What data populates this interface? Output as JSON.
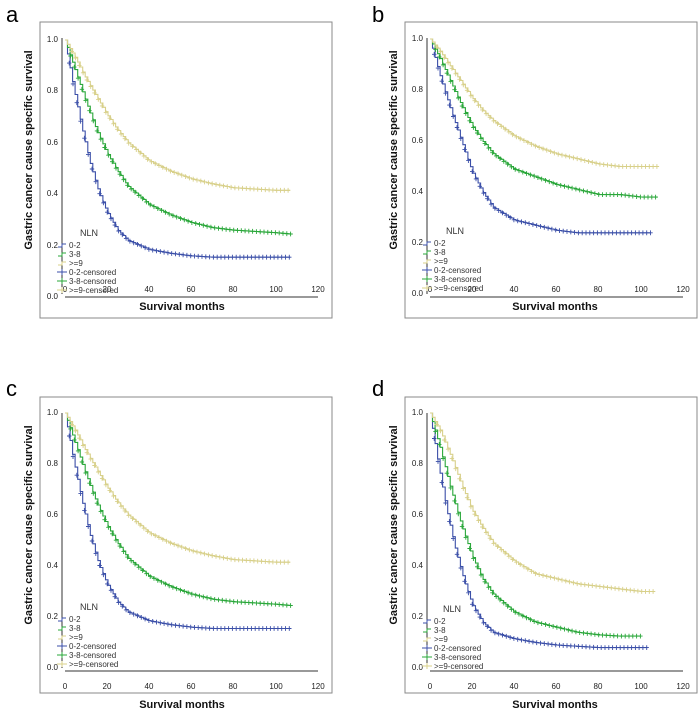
{
  "colors": {
    "group_low": "#3b4fa8",
    "group_mid": "#2aa73a",
    "group_high": "#d8d08a",
    "axis": "#333333",
    "frame": "#8a8a8a"
  },
  "chart_data": [
    {
      "panel_label": "a",
      "type": "line",
      "ylabel": "Gastric cancer cause specific survival",
      "xlabel": "Survival months",
      "xlim": [
        0,
        120
      ],
      "ylim": [
        0,
        1.0
      ],
      "x_ticks": [
        0,
        20,
        40,
        60,
        80,
        100,
        120
      ],
      "y_ticks": [
        "0.0",
        "0.2",
        "0.4",
        "0.6",
        "0.8",
        "1.0"
      ],
      "legend_title": "NLN",
      "legend_labels": [
        "0-2",
        "3-8",
        ">=9",
        "0-2-censored",
        "3-8-censored",
        ">=9-censored"
      ],
      "series": [
        {
          "name": "0-2",
          "color_key": "group_low",
          "x": [
            0,
            4,
            8,
            12,
            16,
            20,
            25,
            30,
            40,
            50,
            60,
            70,
            80,
            90,
            100,
            107
          ],
          "values": [
            1.0,
            0.82,
            0.66,
            0.52,
            0.41,
            0.33,
            0.26,
            0.22,
            0.185,
            0.17,
            0.16,
            0.155,
            0.155,
            0.155,
            0.155,
            0.155
          ]
        },
        {
          "name": "3-8",
          "color_key": "group_mid",
          "x": [
            0,
            5,
            10,
            15,
            20,
            25,
            30,
            40,
            50,
            60,
            70,
            80,
            90,
            100,
            107
          ],
          "values": [
            1.0,
            0.88,
            0.76,
            0.65,
            0.56,
            0.49,
            0.43,
            0.36,
            0.32,
            0.29,
            0.27,
            0.26,
            0.255,
            0.25,
            0.245
          ]
        },
        {
          "name": ">=9",
          "color_key": "group_high",
          "x": [
            0,
            5,
            10,
            15,
            20,
            25,
            30,
            40,
            50,
            60,
            70,
            80,
            90,
            100,
            107
          ],
          "values": [
            1.0,
            0.93,
            0.85,
            0.78,
            0.71,
            0.65,
            0.6,
            0.53,
            0.49,
            0.46,
            0.44,
            0.425,
            0.42,
            0.415,
            0.415
          ]
        }
      ]
    },
    {
      "panel_label": "b",
      "type": "line",
      "ylabel": "Gastric cancer cause specific survival",
      "xlabel": "Survival months",
      "xlim": [
        0,
        120
      ],
      "ylim": [
        0,
        1.0
      ],
      "x_ticks": [
        0,
        20,
        40,
        60,
        80,
        100,
        120
      ],
      "y_ticks": [
        "0.0",
        "0.2",
        "0.4",
        "0.6",
        "0.8",
        "1.0"
      ],
      "legend_title": "NLN",
      "legend_labels": [
        "0-2",
        "3-8",
        ">=9",
        "0-2-censored",
        "3-8-censored",
        ">=9-censored"
      ],
      "series": [
        {
          "name": "0-2",
          "color_key": "group_low",
          "x": [
            0,
            5,
            10,
            15,
            20,
            25,
            30,
            40,
            50,
            60,
            70,
            80,
            90,
            100,
            105
          ],
          "values": [
            1.0,
            0.85,
            0.72,
            0.6,
            0.48,
            0.4,
            0.34,
            0.29,
            0.27,
            0.25,
            0.24,
            0.24,
            0.24,
            0.24,
            0.24
          ]
        },
        {
          "name": "3-8",
          "color_key": "group_mid",
          "x": [
            0,
            5,
            10,
            15,
            20,
            25,
            30,
            40,
            50,
            60,
            70,
            80,
            90,
            100,
            108
          ],
          "values": [
            1.0,
            0.92,
            0.83,
            0.74,
            0.66,
            0.6,
            0.55,
            0.49,
            0.46,
            0.43,
            0.41,
            0.39,
            0.39,
            0.38,
            0.38
          ]
        },
        {
          "name": ">=9",
          "color_key": "group_high",
          "x": [
            0,
            5,
            10,
            15,
            20,
            25,
            30,
            40,
            50,
            60,
            70,
            80,
            90,
            100,
            108
          ],
          "values": [
            1.0,
            0.95,
            0.89,
            0.83,
            0.77,
            0.72,
            0.68,
            0.62,
            0.58,
            0.55,
            0.53,
            0.51,
            0.5,
            0.5,
            0.5
          ]
        }
      ]
    },
    {
      "panel_label": "c",
      "type": "line",
      "ylabel": "Gastric cancer cause specific survival",
      "xlabel": "Survival months",
      "xlim": [
        0,
        120
      ],
      "ylim": [
        0,
        1.0
      ],
      "x_ticks": [
        0,
        20,
        40,
        60,
        80,
        100,
        120
      ],
      "y_ticks": [
        "0.0",
        "0.2",
        "0.4",
        "0.6",
        "0.8",
        "1.0"
      ],
      "legend_title": "NLN",
      "legend_labels": [
        "0-2",
        "3-8",
        ">=9",
        "0-2-censored",
        "3-8-censored",
        ">=9-censored"
      ],
      "series": [
        {
          "name": "0-2",
          "color_key": "group_low",
          "x": [
            0,
            4,
            8,
            12,
            16,
            20,
            25,
            30,
            40,
            50,
            60,
            70,
            80,
            90,
            100,
            107
          ],
          "values": [
            1.0,
            0.82,
            0.66,
            0.52,
            0.41,
            0.33,
            0.26,
            0.22,
            0.185,
            0.17,
            0.16,
            0.155,
            0.155,
            0.155,
            0.155,
            0.155
          ]
        },
        {
          "name": "3-8",
          "color_key": "group_mid",
          "x": [
            0,
            5,
            10,
            15,
            20,
            25,
            30,
            40,
            50,
            60,
            70,
            80,
            90,
            100,
            107
          ],
          "values": [
            1.0,
            0.88,
            0.76,
            0.65,
            0.56,
            0.49,
            0.43,
            0.36,
            0.32,
            0.29,
            0.27,
            0.26,
            0.255,
            0.25,
            0.245
          ]
        },
        {
          "name": ">=9",
          "color_key": "group_high",
          "x": [
            0,
            5,
            10,
            15,
            20,
            25,
            30,
            40,
            50,
            60,
            70,
            80,
            90,
            100,
            107
          ],
          "values": [
            1.0,
            0.93,
            0.85,
            0.78,
            0.71,
            0.65,
            0.6,
            0.53,
            0.49,
            0.46,
            0.44,
            0.425,
            0.42,
            0.415,
            0.415
          ]
        }
      ]
    },
    {
      "panel_label": "d",
      "type": "line",
      "ylabel": "Gastric cancer cause specific survival",
      "xlabel": "Survival months",
      "xlim": [
        0,
        120
      ],
      "ylim": [
        0,
        1.0
      ],
      "x_ticks": [
        0,
        20,
        40,
        60,
        80,
        100,
        120
      ],
      "y_ticks": [
        "0.0",
        "0.2",
        "0.4",
        "0.6",
        "0.8",
        "1.0"
      ],
      "legend_title": "NLN",
      "legend_labels": [
        "0-2",
        "3-8",
        ">=9",
        "0-2-censored",
        "3-8-censored",
        ">=9-censored"
      ],
      "series": [
        {
          "name": "0-2",
          "color_key": "group_low",
          "x": [
            0,
            4,
            8,
            12,
            16,
            20,
            25,
            30,
            40,
            50,
            60,
            70,
            80,
            90,
            100,
            104
          ],
          "values": [
            1.0,
            0.8,
            0.62,
            0.47,
            0.35,
            0.25,
            0.18,
            0.14,
            0.115,
            0.1,
            0.09,
            0.085,
            0.08,
            0.08,
            0.08,
            0.08
          ]
        },
        {
          "name": "3-8",
          "color_key": "group_mid",
          "x": [
            0,
            5,
            10,
            15,
            20,
            25,
            30,
            40,
            50,
            60,
            70,
            80,
            90,
            100
          ],
          "values": [
            1.0,
            0.86,
            0.7,
            0.56,
            0.44,
            0.35,
            0.29,
            0.22,
            0.18,
            0.16,
            0.14,
            0.13,
            0.125,
            0.125
          ]
        },
        {
          "name": ">=9",
          "color_key": "group_high",
          "x": [
            0,
            5,
            10,
            15,
            20,
            25,
            30,
            40,
            50,
            60,
            70,
            80,
            90,
            100,
            106
          ],
          "values": [
            1.0,
            0.93,
            0.83,
            0.72,
            0.62,
            0.55,
            0.49,
            0.42,
            0.37,
            0.35,
            0.33,
            0.32,
            0.31,
            0.3,
            0.3
          ]
        }
      ]
    }
  ]
}
